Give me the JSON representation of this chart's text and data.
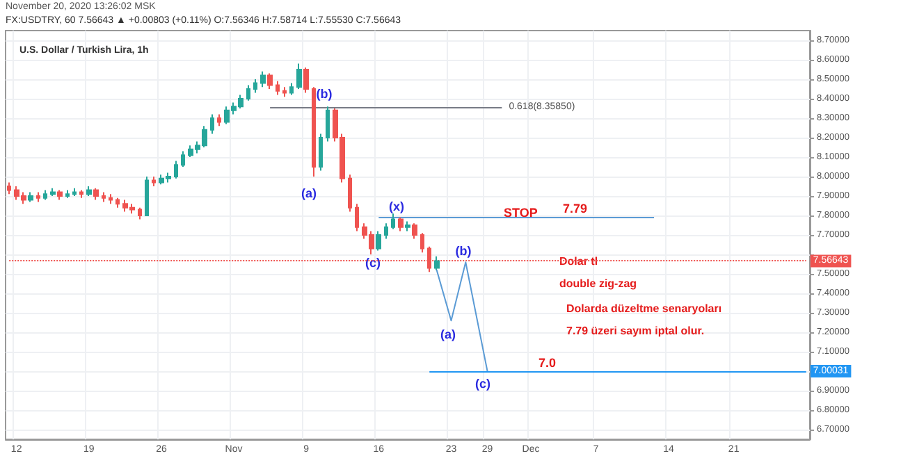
{
  "chart_data": {
    "type": "candlestick",
    "title": "U.S. Dollar / Turkish Lira, 1h",
    "annotations": [
      "November 20, 2020 13:26:02 MSK",
      "FX:USDTRY, 60 7.56643 ▲ +0.00803 (+0.11%) O:7.56346 H:7.58714 L:7.55530 C:7.56643",
      {
        "text": "(b)",
        "y": 8.36
      },
      {
        "text": "(a)",
        "y": 8.0
      },
      {
        "text": "(c)",
        "y": 7.6
      },
      {
        "text": "(x)",
        "y": 7.81
      },
      "STOP",
      "Dolar tl",
      "double zig-zag",
      "Dolarda düzeltme senaryoları",
      "7.79 üzeri sayım iptal olur.",
      "7.0",
      {
        "text": "(a)",
        "y": 7.26
      },
      {
        "text": "(b)",
        "y": 7.56
      },
      {
        "text": "(c)",
        "y": 7.0
      }
    ],
    "categories": [
      null,
      "12",
      null,
      null,
      null,
      null,
      null,
      null,
      null,
      null,
      null,
      "19",
      null,
      null,
      null,
      null,
      null,
      null,
      null,
      null,
      null,
      "26",
      null,
      null,
      null,
      null,
      null,
      null,
      null,
      null,
      null,
      "Nov",
      null,
      null,
      null,
      null,
      null,
      null,
      null,
      null,
      null,
      "9",
      null,
      null,
      null,
      null,
      null,
      null,
      null,
      null,
      null,
      "16",
      null,
      null,
      null,
      null,
      null,
      null,
      null,
      null,
      null,
      "23",
      null,
      null,
      null,
      null,
      "29",
      null,
      null,
      null,
      null,
      null,
      "Dec",
      null,
      null,
      null,
      null,
      null,
      null,
      null,
      null,
      "7",
      null,
      null,
      null,
      null,
      null,
      null,
      null,
      null,
      null,
      "14",
      null,
      null,
      null,
      null,
      null,
      null,
      null,
      null,
      "21",
      null,
      null,
      null,
      null,
      null,
      null,
      null,
      null,
      null,
      null
    ],
    "ohlc": [
      [
        7.95,
        7.97,
        7.91,
        7.93
      ],
      [
        7.93,
        7.95,
        7.88,
        7.9
      ],
      [
        7.9,
        7.92,
        7.86,
        7.88
      ],
      [
        7.88,
        7.92,
        7.87,
        7.9
      ],
      [
        7.9,
        7.92,
        7.87,
        7.89
      ],
      [
        7.89,
        7.93,
        7.88,
        7.91
      ],
      [
        7.91,
        7.94,
        7.9,
        7.92
      ],
      [
        7.92,
        7.93,
        7.88,
        7.9
      ],
      [
        7.9,
        7.93,
        7.89,
        7.91
      ],
      [
        7.91,
        7.94,
        7.9,
        7.92
      ],
      [
        7.92,
        7.93,
        7.89,
        7.91
      ],
      [
        7.91,
        7.95,
        7.9,
        7.93
      ],
      [
        7.93,
        7.94,
        7.88,
        7.9
      ],
      [
        7.9,
        7.92,
        7.87,
        7.89
      ],
      [
        7.89,
        7.91,
        7.86,
        7.88
      ],
      [
        7.88,
        7.89,
        7.84,
        7.86
      ],
      [
        7.86,
        7.88,
        7.82,
        7.84
      ],
      [
        7.84,
        7.86,
        7.81,
        7.83
      ],
      [
        7.83,
        7.84,
        7.78,
        7.8
      ],
      [
        7.8,
        8.0,
        7.8,
        7.98
      ],
      [
        7.98,
        8.0,
        7.95,
        7.97
      ],
      [
        7.97,
        8.01,
        7.96,
        7.99
      ],
      [
        7.99,
        8.02,
        7.97,
        8.0
      ],
      [
        8.0,
        8.08,
        7.99,
        8.06
      ],
      [
        8.06,
        8.13,
        8.05,
        8.11
      ],
      [
        8.11,
        8.16,
        8.1,
        8.14
      ],
      [
        8.14,
        8.18,
        8.12,
        8.16
      ],
      [
        8.16,
        8.26,
        8.15,
        8.24
      ],
      [
        8.24,
        8.32,
        8.22,
        8.3
      ],
      [
        8.3,
        8.32,
        8.26,
        8.28
      ],
      [
        8.28,
        8.36,
        8.27,
        8.34
      ],
      [
        8.34,
        8.38,
        8.32,
        8.36
      ],
      [
        8.36,
        8.42,
        8.35,
        8.4
      ],
      [
        8.4,
        8.47,
        8.39,
        8.45
      ],
      [
        8.45,
        8.5,
        8.43,
        8.48
      ],
      [
        8.48,
        8.54,
        8.46,
        8.52
      ],
      [
        8.52,
        8.53,
        8.45,
        8.47
      ],
      [
        8.47,
        8.49,
        8.42,
        8.44
      ],
      [
        8.44,
        8.46,
        8.41,
        8.43
      ],
      [
        8.43,
        8.48,
        8.42,
        8.46
      ],
      [
        8.46,
        8.58,
        8.45,
        8.55
      ],
      [
        8.55,
        8.56,
        8.43,
        8.45
      ],
      [
        8.45,
        8.46,
        8.0,
        8.05
      ],
      [
        8.05,
        8.22,
        8.03,
        8.2
      ],
      [
        8.2,
        8.36,
        8.18,
        8.34
      ],
      [
        8.34,
        8.35,
        8.18,
        8.2
      ],
      [
        8.2,
        8.22,
        7.97,
        7.99
      ],
      [
        7.99,
        8.01,
        7.82,
        7.84
      ],
      [
        7.84,
        7.86,
        7.72,
        7.74
      ],
      [
        7.74,
        7.76,
        7.68,
        7.7
      ],
      [
        7.7,
        7.72,
        7.6,
        7.63
      ],
      [
        7.63,
        7.72,
        7.62,
        7.7
      ],
      [
        7.7,
        7.76,
        7.68,
        7.74
      ],
      [
        7.74,
        7.81,
        7.73,
        7.78
      ],
      [
        7.78,
        7.79,
        7.72,
        7.74
      ],
      [
        7.74,
        7.77,
        7.72,
        7.75
      ],
      [
        7.75,
        7.76,
        7.68,
        7.7
      ],
      [
        7.7,
        7.71,
        7.61,
        7.63
      ],
      [
        7.63,
        7.64,
        7.51,
        7.53
      ],
      [
        7.53,
        7.59,
        7.52,
        7.56643
      ],
      null,
      null,
      null,
      null,
      null,
      null,
      null,
      null,
      null,
      null,
      null,
      null,
      null,
      null,
      null,
      null,
      null,
      null,
      null,
      null,
      null,
      null,
      null,
      null,
      null,
      null,
      null,
      null,
      null,
      null,
      null,
      null,
      null,
      null,
      null,
      null,
      null,
      null,
      null,
      null,
      null,
      null,
      null,
      null,
      null,
      null,
      null,
      null,
      null,
      null,
      null
    ],
    "colors": [
      "#ef5350",
      "#ef5350",
      "#ef5350",
      "#26a69a",
      "#ef5350",
      "#26a69a",
      "#26a69a",
      "#ef5350",
      "#26a69a",
      "#26a69a",
      "#ef5350",
      "#26a69a",
      "#ef5350",
      "#ef5350",
      "#ef5350",
      "#ef5350",
      "#ef5350",
      "#ef5350",
      "#ef5350",
      "#26a69a",
      "#ef5350",
      "#26a69a",
      "#26a69a",
      "#26a69a",
      "#26a69a",
      "#26a69a",
      "#26a69a",
      "#26a69a",
      "#26a69a",
      "#ef5350",
      "#26a69a",
      "#26a69a",
      "#26a69a",
      "#26a69a",
      "#26a69a",
      "#26a69a",
      "#ef5350",
      "#ef5350",
      "#ef5350",
      "#26a69a",
      "#26a69a",
      "#ef5350",
      "#ef5350",
      "#26a69a",
      "#26a69a",
      "#ef5350",
      "#ef5350",
      "#ef5350",
      "#ef5350",
      "#ef5350",
      "#ef5350",
      "#26a69a",
      "#26a69a",
      "#26a69a",
      "#ef5350",
      "#26a69a",
      "#ef5350",
      "#ef5350",
      "#ef5350",
      "#26a69a",
      null,
      null,
      null,
      null,
      null,
      null,
      null,
      null,
      null,
      null,
      null,
      null,
      null,
      null,
      null,
      null,
      null,
      null,
      null,
      null,
      null,
      null,
      null,
      null,
      null,
      null,
      null,
      null,
      null,
      null,
      null,
      null,
      null,
      null,
      null,
      null,
      null,
      null,
      null,
      null,
      null,
      null,
      null,
      null,
      null,
      null,
      null,
      null,
      null,
      null,
      null
    ],
    "series": [
      {
        "type": "line",
        "color": "#5b9bd5",
        "values": [
          null,
          null,
          null,
          null,
          null,
          null,
          null,
          null,
          null,
          null,
          null,
          null,
          null,
          null,
          null,
          null,
          null,
          null,
          null,
          null,
          null,
          null,
          null,
          null,
          null,
          null,
          null,
          null,
          null,
          null,
          null,
          null,
          null,
          null,
          null,
          null,
          null,
          null,
          null,
          null,
          null,
          null,
          null,
          null,
          null,
          null,
          null,
          null,
          null,
          null,
          null,
          null,
          null,
          null,
          null,
          null,
          null,
          null,
          null,
          7.52,
          null,
          7.26,
          null,
          7.56,
          null,
          null,
          7.0,
          null,
          null,
          null,
          null,
          null,
          null,
          null,
          null,
          null,
          null,
          null,
          null,
          null,
          null,
          null,
          null,
          null,
          null,
          null,
          null,
          null,
          null,
          null,
          null,
          null,
          null,
          null,
          null,
          null,
          null,
          null,
          null,
          null,
          null,
          null,
          null,
          null,
          null,
          null,
          null,
          null,
          null,
          null,
          null
        ]
      }
    ],
    "ylim": [
      6.65,
      8.75
    ],
    "yticks": [
      {
        "value": 6.7,
        "label": "6.70000"
      },
      {
        "value": 6.8,
        "label": "6.80000"
      },
      {
        "value": 6.9,
        "label": "6.90000"
      },
      {
        "value": 7.0,
        "label": null
      },
      {
        "value": 7.1,
        "label": "7.10000"
      },
      {
        "value": 7.2,
        "label": "7.20000"
      },
      {
        "value": 7.3,
        "label": "7.30000"
      },
      {
        "value": 7.4,
        "label": "7.40000"
      },
      {
        "value": 7.5,
        "label": "7.50000"
      },
      {
        "value": 7.6,
        "label": null
      },
      {
        "value": 7.7,
        "label": "7.70000"
      },
      {
        "value": 7.8,
        "label": "7.80000"
      },
      {
        "value": 7.9,
        "label": "7.90000"
      },
      {
        "value": 8.0,
        "label": "8.00000"
      },
      {
        "value": 8.1,
        "label": "8.10000"
      },
      {
        "value": 8.2,
        "label": "8.20000"
      },
      {
        "value": 8.3,
        "label": "8.30000"
      },
      {
        "value": 8.4,
        "label": "8.40000"
      },
      {
        "value": 8.5,
        "label": "8.50000"
      },
      {
        "value": 8.6,
        "label": "8.60000"
      },
      {
        "value": 8.7,
        "label": "8.70000"
      }
    ],
    "ref_lines": [
      {
        "axis": "y",
        "value": 7.79,
        "label": "7.79",
        "color": "#5b9bd5"
      },
      {
        "axis": "y",
        "value": 8.3585,
        "label": "0.618(8.35850)",
        "color": "#787b86"
      },
      {
        "axis": "y",
        "value": 7.00031,
        "label": "7.00031",
        "color": "#2196f3"
      },
      {
        "axis": "y",
        "value": 7.56643,
        "label": "7.56643",
        "color": "#ef5350",
        "line_style": "dotted"
      }
    ],
    "grid": true
  }
}
